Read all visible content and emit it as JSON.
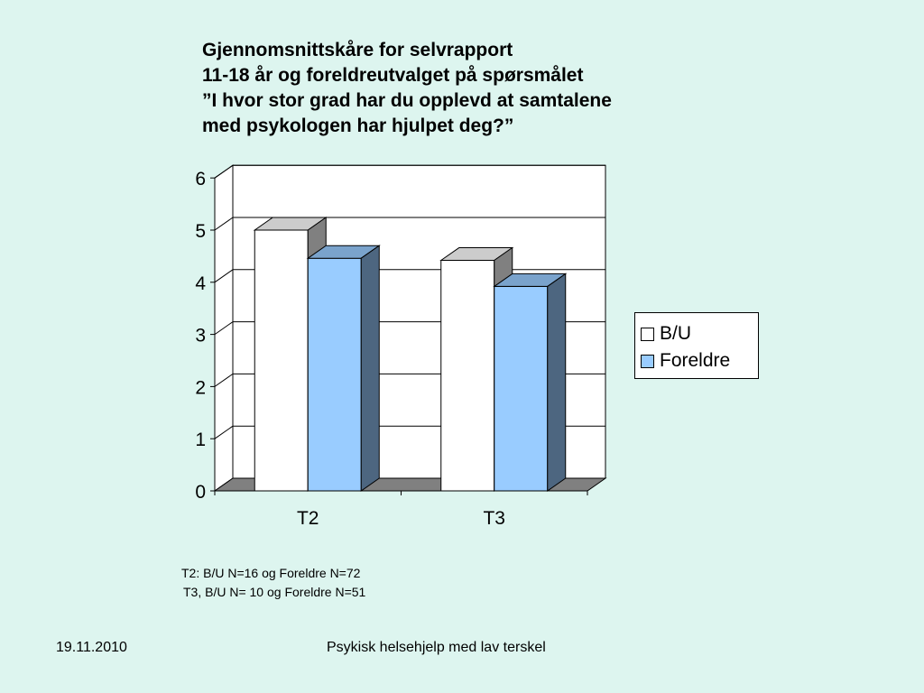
{
  "slide": {
    "title_lines": [
      "Gjennomsnittskåre for selvrapport",
      "11-18 år og foreldreutvalget på spørsmålet",
      "”I hvor stor grad har du opplevd at samtalene",
      "med psykologen har hjulpet deg?”"
    ],
    "notes": [
      "T2: B/U N=16 og Foreldre N=72",
      "T3, B/U N= 10 og Foreldre N=51"
    ],
    "footer_date": "19.11.2010",
    "footer_text": "Psykisk helsehjelp med lav terskel"
  },
  "chart_data": {
    "type": "bar",
    "categories": [
      "T2",
      "T3"
    ],
    "series": [
      {
        "name": "B/U",
        "values": [
          5.0,
          4.42
        ],
        "color": "#ffffff"
      },
      {
        "name": "Foreldre",
        "values": [
          4.46,
          3.92
        ],
        "color": "#99ccff"
      }
    ],
    "yticks": [
      "0",
      "1",
      "2",
      "3",
      "4",
      "5",
      "6"
    ],
    "ylim": [
      0,
      6
    ],
    "grid": true,
    "three_d": true,
    "legend_position": "right"
  }
}
